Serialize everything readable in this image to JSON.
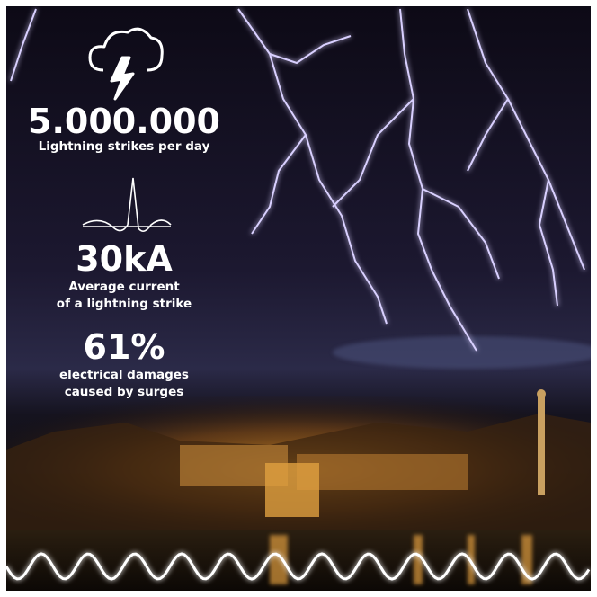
{
  "stats": [
    {
      "value": "5.000.000",
      "lines": [
        "Lightning strikes per day"
      ]
    },
    {
      "value": "30kA",
      "lines": [
        "Average current",
        "of a lightning strike"
      ]
    },
    {
      "value": "61%",
      "lines": [
        "electrical damages",
        "caused by surges"
      ]
    }
  ]
}
